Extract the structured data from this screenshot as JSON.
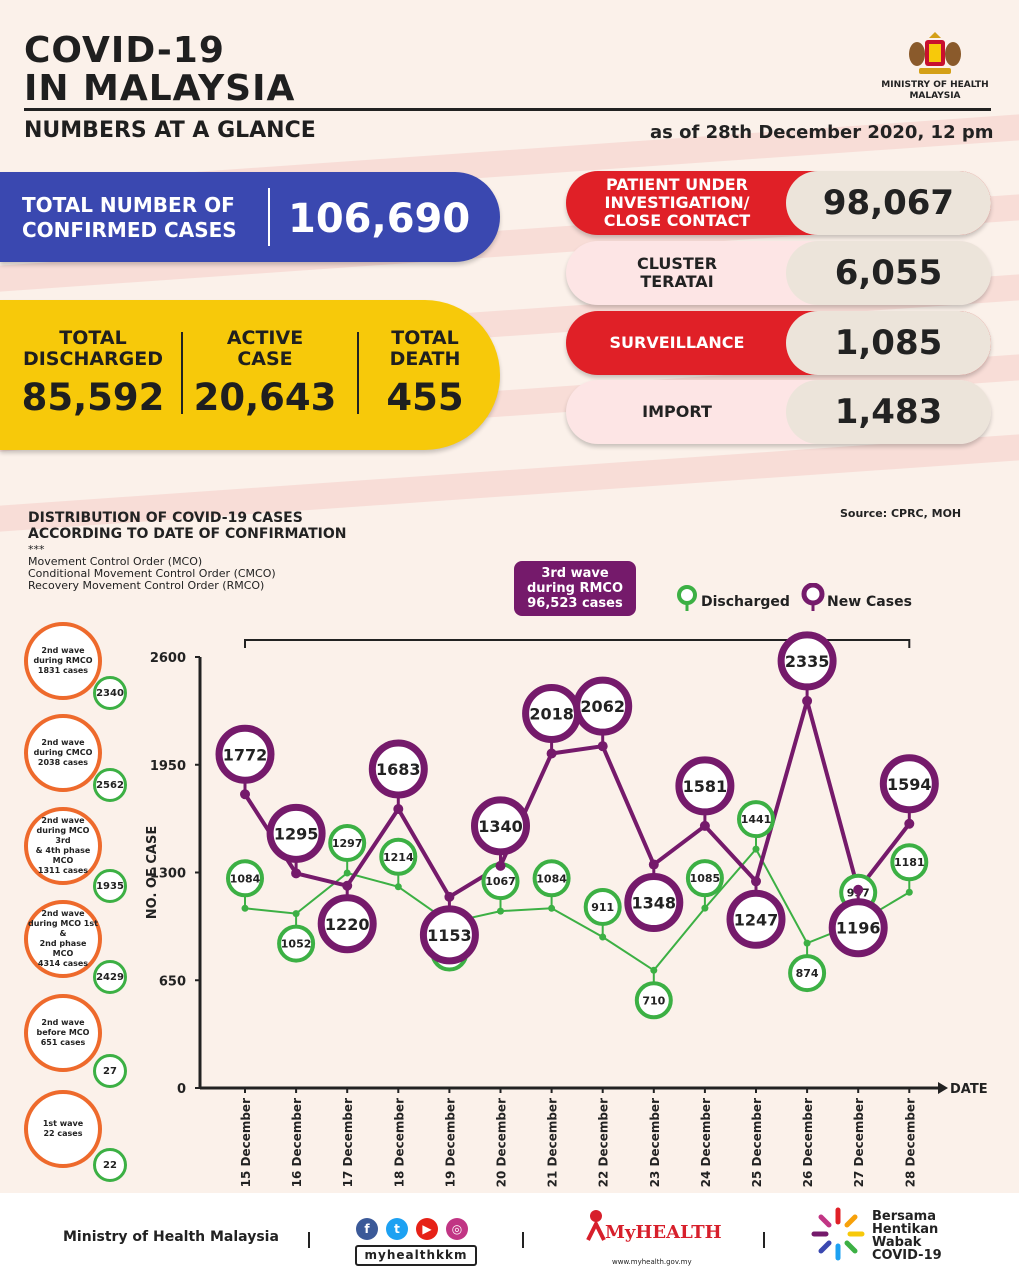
{
  "header": {
    "title_line1": "COVID-19",
    "title_line2": "IN MALAYSIA",
    "subtitle": "NUMBERS AT A GLANCE",
    "as_of": "as of 28th December 2020, 12 pm",
    "ministry_line1": "MINISTRY OF HEALTH",
    "ministry_line2": "MALAYSIA"
  },
  "confirmed": {
    "label_line1": "TOTAL NUMBER OF",
    "label_line2": "CONFIRMED CASES",
    "value": "106,690"
  },
  "summary": {
    "discharged": {
      "label_line1": "TOTAL",
      "label_line2": "DISCHARGED",
      "value": "85,592"
    },
    "active": {
      "label_line1": "ACTIVE",
      "label_line2": "CASE",
      "value": "20,643"
    },
    "death": {
      "label_line1": "TOTAL",
      "label_line2": "DEATH",
      "value": "455"
    }
  },
  "categories": [
    {
      "label_line1": "PATIENT UNDER",
      "label_line2": "INVESTIGATION/",
      "label_line3": "CLOSE CONTACT",
      "value": "98,067"
    },
    {
      "label_line1": "CLUSTER",
      "label_line2": "TERATAI",
      "value": "6,055"
    },
    {
      "label_line1": "SURVEILLANCE",
      "value": "1,085"
    },
    {
      "label_line1": "IMPORT",
      "value": "1,483"
    }
  ],
  "colors": {
    "blue": "#3a48b0",
    "yellow": "#f7c90a",
    "red": "#e02027",
    "purple": "#751a6b",
    "green": "#3cb044",
    "orange": "#ee6a2c"
  },
  "chart_section": {
    "title_line1": "DISTRIBUTION OF COVID-19 CASES",
    "title_line2": "ACCORDING TO DATE OF CONFIRMATION",
    "source": "Source: CPRC, MOH",
    "abbr_marker": "***",
    "abbr_1": "Movement Control Order (MCO)",
    "abbr_2": "Conditional Movement Control Order (CMCO)",
    "abbr_3": "Recovery Movement Control Order (RMCO)",
    "wave_line1": "3rd wave",
    "wave_line2": "during RMCO",
    "wave_line3": "96,523 cases",
    "legend_discharged": "Discharged",
    "legend_new": "New Cases"
  },
  "waves": [
    {
      "line1": "2nd wave",
      "line2": "during RMCO",
      "line3": "1831 cases",
      "count": "2340"
    },
    {
      "line1": "2nd wave",
      "line2": "during CMCO",
      "line3": "2038 cases",
      "count": "2562"
    },
    {
      "line1": "2nd wave",
      "line2": "during MCO 3rd",
      "line3": "& 4th phase MCO",
      "line4": "1311 cases",
      "count": "1935"
    },
    {
      "line1": "2nd wave",
      "line2": "during MCO 1st &",
      "line3": "2nd phase MCO",
      "line4": "4314 cases",
      "count": "2429"
    },
    {
      "line1": "2nd wave",
      "line2": "before MCO",
      "line3": "651 cases",
      "count": "27"
    },
    {
      "line1": "1st wave",
      "line2": "22 cases",
      "count": "22"
    }
  ],
  "chart_data": {
    "type": "line",
    "xlabel": "DATE",
    "ylabel": "NO. OF CASE",
    "ylim": [
      0,
      2600
    ],
    "yticks": [
      0,
      650,
      1300,
      1950,
      2600
    ],
    "categories": [
      "15 December",
      "16 December",
      "17 December",
      "18 December",
      "19 December",
      "20 December",
      "21 December",
      "22 December",
      "23 December",
      "24 December",
      "25 December",
      "26 December",
      "27 December",
      "28 December"
    ],
    "series": [
      {
        "name": "New Cases",
        "color": "#751a6b",
        "values": [
          1772,
          1295,
          1220,
          1683,
          1153,
          1340,
          2018,
          2062,
          1348,
          1581,
          1247,
          2335,
          1196,
          1594
        ]
      },
      {
        "name": "Discharged",
        "color": "#3cb044",
        "values": [
          1084,
          1052,
          1297,
          1214,
          998,
          1067,
          1084,
          911,
          710,
          1085,
          1441,
          874,
          997,
          1181
        ]
      }
    ]
  },
  "footer": {
    "ministry": "Ministry of Health Malaysia",
    "handle": "myhealthkkm",
    "myhealth": "MyHEALTH",
    "myhealth_url": "www.myhealth.gov.my",
    "bersama_1": "Bersama",
    "bersama_2": "Hentikan",
    "bersama_3": "Wabak",
    "bersama_4": "COVID-19"
  }
}
